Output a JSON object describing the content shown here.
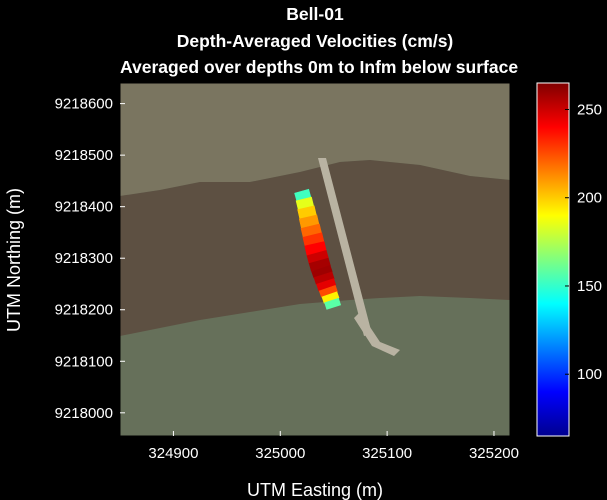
{
  "chart_data": {
    "type": "heatmap",
    "title_lines": [
      "Bell-01",
      "Depth-Averaged Velocities (cm/s)",
      "Averaged over depths 0m to Infm below surface"
    ],
    "xlabel": "UTM Easting (m)",
    "ylabel": "UTM Northing (m)",
    "xlim": [
      324850,
      325215
    ],
    "ylim": [
      9217955,
      9218640
    ],
    "xticks": [
      324900,
      325000,
      325100,
      325200
    ],
    "yticks": [
      9218000,
      9218100,
      9218200,
      9218300,
      9218400,
      9218500,
      9218600
    ],
    "colorbar": {
      "range": [
        65,
        265
      ],
      "ticks": [
        100,
        150,
        200,
        250
      ],
      "colormap": "jet"
    },
    "velocity_transect": {
      "x": [
        325020,
        325022,
        325024,
        325026,
        325028,
        325030,
        325032,
        325034,
        325036,
        325038,
        325040,
        325042,
        325044,
        325046,
        325048,
        325050
      ],
      "y": [
        9218430,
        9218415,
        9218398,
        9218380,
        9218362,
        9218345,
        9218328,
        9218310,
        9218295,
        9218280,
        9218268,
        9218255,
        9218242,
        9218230,
        9218218,
        9218205
      ],
      "values": [
        130,
        175,
        195,
        205,
        215,
        225,
        235,
        245,
        255,
        260,
        258,
        250,
        240,
        210,
        175,
        140
      ]
    }
  },
  "background": {
    "colors": {
      "river": "#5d5042",
      "north_bank": "#7a7560",
      "south_bank": "#66705a",
      "bridge": "#b9b3a2"
    }
  }
}
